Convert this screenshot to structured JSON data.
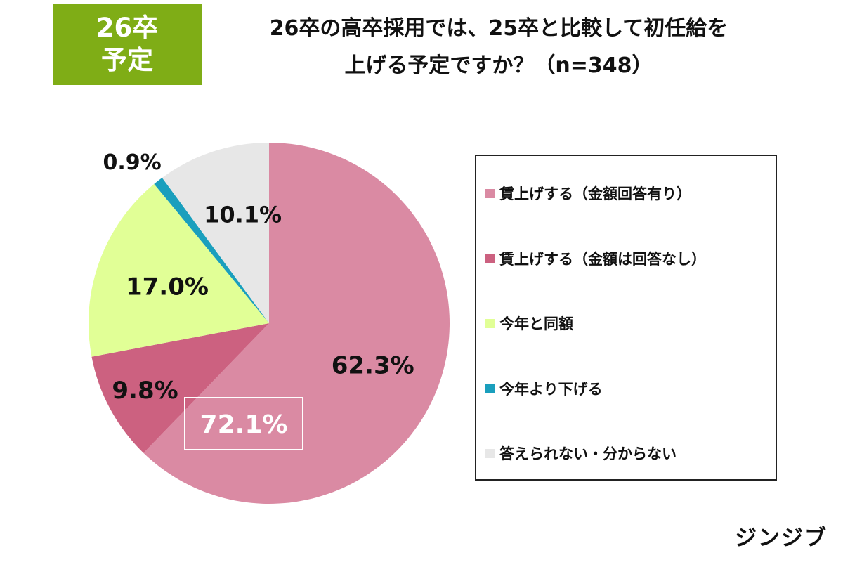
{
  "badge": {
    "line1": "26卒",
    "line2": "予定"
  },
  "title": {
    "line1": "26卒の高卒採用では、25卒と比較して初任給を",
    "line2": "上げる予定ですか？（n=348）"
  },
  "brand": "ジンジブ",
  "chart_data": {
    "type": "pie",
    "title": "26卒の高卒採用では、25卒と比較して初任給を上げる予定ですか？（n=348）",
    "slices": [
      {
        "label": "賃上げする（金額回答有り）",
        "value": 62.3,
        "display": "62.3%",
        "color": "#da8aa3"
      },
      {
        "label": "賃上げする（金額は回答なし）",
        "value": 9.8,
        "display": "9.8%",
        "color": "#cc6180"
      },
      {
        "label": "今年と同額",
        "value": 17.0,
        "display": "17.0%",
        "color": "#e1ff96"
      },
      {
        "label": "今年より下げる",
        "value": 0.9,
        "display": "0.9%",
        "color": "#1a9fbd"
      },
      {
        "label": "答えられない・分からない",
        "value": 10.1,
        "display": "10.1%",
        "color": "#e7e7e7"
      }
    ],
    "start": "12 o'clock, clockwise",
    "legend_position": "right",
    "annotation": {
      "text": "72.1%",
      "note_sum_of": [
        "賃上げする（金額回答有り）",
        "賃上げする（金額は回答なし）"
      ]
    }
  },
  "legend": {
    "items": [
      {
        "label": "賃上げする（金額回答有り）",
        "color": "#da8aa3"
      },
      {
        "label": "賃上げする（金額は回答なし）",
        "color": "#cc6180"
      },
      {
        "label": "今年と同額",
        "color": "#e1ff96"
      },
      {
        "label": "今年より下げる",
        "color": "#1a9fbd"
      },
      {
        "label": "答えられない・分からない",
        "color": "#e7e7e7"
      }
    ]
  }
}
